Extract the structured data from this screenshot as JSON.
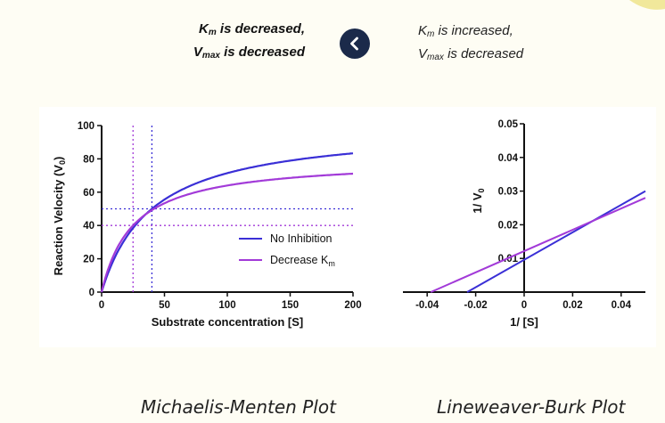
{
  "options": {
    "left": {
      "k_main": "K",
      "k_sub": "m",
      "k_rest": " is decreased,",
      "v_main": "V",
      "v_sub": "max",
      "v_rest": " is decreased"
    },
    "right": {
      "k_main": "K",
      "k_sub": "m",
      "k_rest": " is increased,",
      "v_main": "V",
      "v_sub": "max",
      "v_rest": " is decreased"
    }
  },
  "nav": {
    "icon": "chevron-left-icon",
    "button_color": "#1b2a4a"
  },
  "captions": {
    "left": "Michaelis-Menten Plot",
    "right": "Lineweaver-Burk Plot"
  },
  "chart_data": [
    {
      "type": "line",
      "xlabel": "Substrate concentration [S]",
      "ylabel_main": "Reaction Velocity (V",
      "ylabel_sub": "0",
      "ylabel_close": ")",
      "xlim": [
        0,
        200
      ],
      "ylim": [
        0,
        100
      ],
      "xticks": [
        0,
        50,
        100,
        150,
        200
      ],
      "yticks": [
        0,
        20,
        40,
        60,
        80,
        100
      ],
      "legend_position": "bottom-right",
      "series": [
        {
          "name_main": "No Inhibition",
          "name_sub": "",
          "vmax": 100,
          "km": 40,
          "color": "#3a2fd6"
        },
        {
          "name_main": "Decrease K",
          "name_sub": "m",
          "vmax": 80,
          "km": 25,
          "color": "#a23ad8"
        }
      ],
      "reference_lines": [
        {
          "orientation": "vertical",
          "x": 40,
          "color": "#3a2fd6"
        },
        {
          "orientation": "vertical",
          "x": 25,
          "color": "#a23ad8"
        },
        {
          "orientation": "horizontal",
          "y": 50,
          "color": "#3a2fd6"
        },
        {
          "orientation": "horizontal",
          "y": 40,
          "color": "#a23ad8"
        }
      ]
    },
    {
      "type": "line",
      "xlabel": "1/ [S]",
      "ylabel_main": "1/ V",
      "ylabel_sub": "0",
      "xlim": [
        -0.05,
        0.05
      ],
      "ylim": [
        0,
        0.05
      ],
      "xticks": [
        -0.04,
        -0.02,
        0,
        0.02,
        0.04
      ],
      "xtick_labels": [
        "-0.04",
        "-0.02",
        "0",
        "0.02",
        "0.04"
      ],
      "yticks": [
        0.01,
        0.02,
        0.03,
        0.04,
        0.05
      ],
      "ytick_labels": [
        "0.01",
        "0.02",
        "0.03",
        "0.04",
        "0.05"
      ],
      "series": [
        {
          "name": "No Inhibition",
          "color": "#3a2fd6",
          "x": [
            -0.0235,
            0.05
          ],
          "y": [
            0,
            0.03
          ]
        },
        {
          "name": "Decrease Km",
          "color": "#a23ad8",
          "x": [
            -0.0385,
            0.05
          ],
          "y": [
            0,
            0.028
          ]
        }
      ]
    }
  ]
}
